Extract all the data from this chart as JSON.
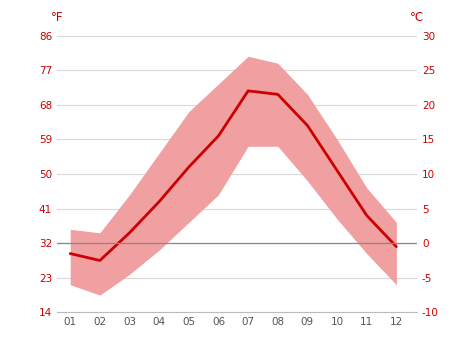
{
  "months": [
    1,
    2,
    3,
    4,
    5,
    6,
    7,
    8,
    9,
    10,
    11,
    12
  ],
  "month_labels": [
    "01",
    "02",
    "03",
    "04",
    "05",
    "06",
    "07",
    "08",
    "09",
    "10",
    "11",
    "12"
  ],
  "mean_temp_c": [
    -1.5,
    -2.5,
    1.5,
    6.0,
    11.0,
    15.5,
    22.0,
    21.5,
    17.0,
    10.5,
    4.0,
    -0.5
  ],
  "upper_band_c": [
    2.0,
    1.5,
    7.0,
    13.0,
    19.0,
    23.0,
    27.0,
    26.0,
    21.5,
    15.0,
    8.0,
    3.0
  ],
  "lower_band_c": [
    -6.0,
    -7.5,
    -4.5,
    -1.0,
    3.0,
    7.0,
    14.0,
    14.0,
    9.0,
    3.5,
    -1.5,
    -6.0
  ],
  "line_color": "#cc0000",
  "band_color": "#f0a0a0",
  "zero_line_color": "#888888",
  "grid_color": "#d8d8d8",
  "tick_color_red": "#cc0000",
  "tick_color_dark": "#555555",
  "background_color": "#ffffff",
  "ylim_c": [
    -10,
    30
  ],
  "yticks_c": [
    -10,
    -5,
    0,
    5,
    10,
    15,
    20,
    25,
    30
  ],
  "yticks_f": [
    14,
    23,
    32,
    41,
    50,
    59,
    68,
    77,
    86
  ],
  "ylabel_left": "°F",
  "ylabel_right": "°C",
  "figsize": [
    4.74,
    3.55
  ],
  "dpi": 100
}
